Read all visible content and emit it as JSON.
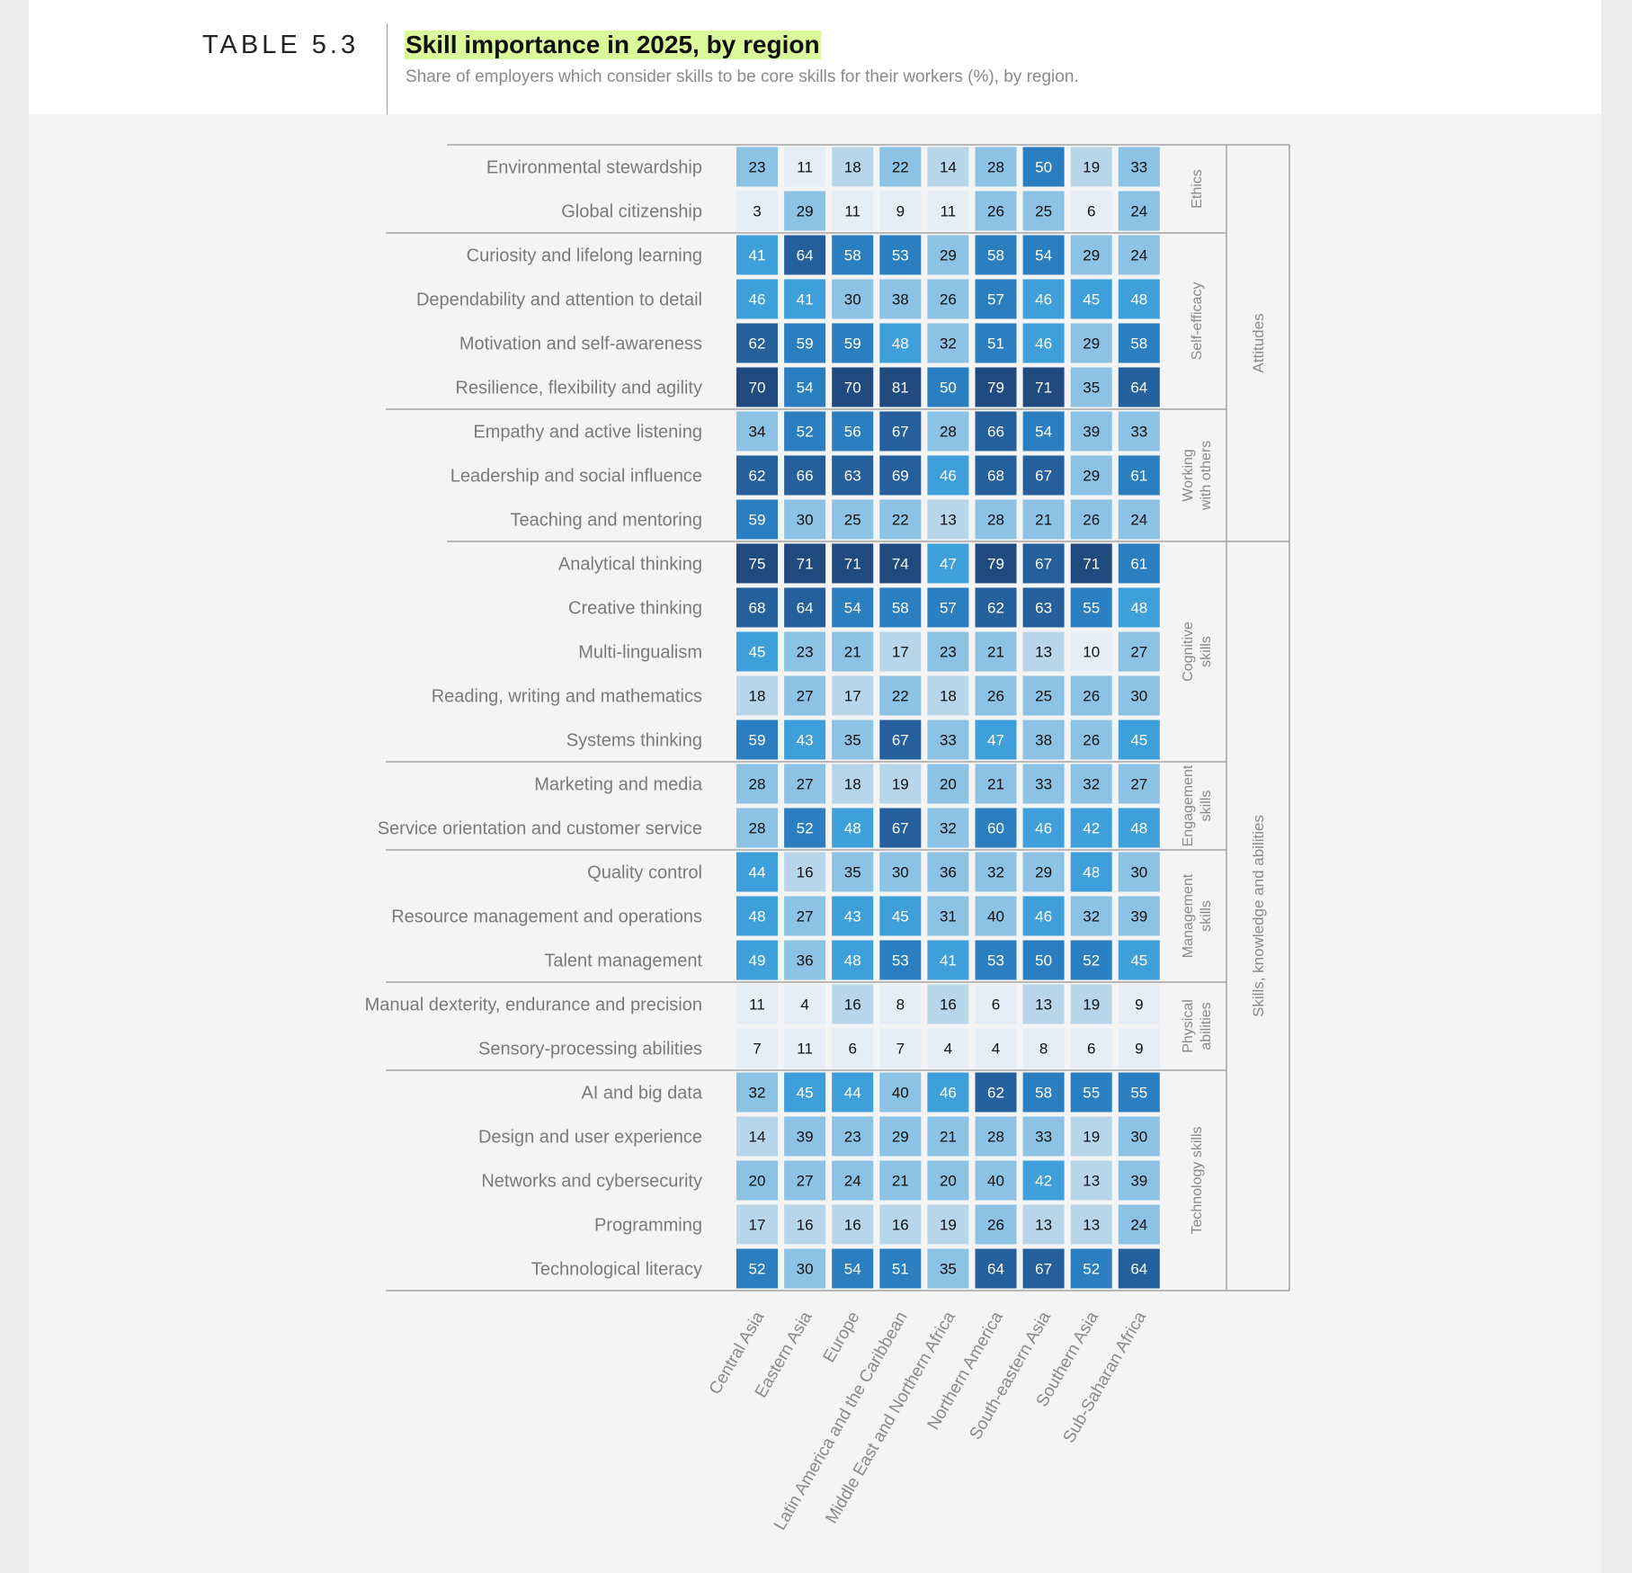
{
  "header": {
    "table_label": "TABLE 5.3",
    "title": "Skill importance in 2025, by region",
    "subtitle": "Share of employers which consider skills to be core skills for their workers (%), by region."
  },
  "chart_data": {
    "type": "heatmap",
    "title": "Skill importance in 2025, by region",
    "unit": "%",
    "regions": [
      "Central Asia",
      "Eastern Asia",
      "Europe",
      "Latin America and the Caribbean",
      "Middle East and Northern Africa",
      "Northern America",
      "South-eastern Asia",
      "Southern Asia",
      "Sub-Saharan Africa"
    ],
    "rows": [
      {
        "skill": "Environmental stewardship",
        "values": [
          23,
          11,
          18,
          22,
          14,
          28,
          50,
          19,
          33
        ]
      },
      {
        "skill": "Global citizenship",
        "values": [
          3,
          29,
          11,
          9,
          11,
          26,
          25,
          6,
          24
        ]
      },
      {
        "skill": "Curiosity and lifelong learning",
        "values": [
          41,
          64,
          58,
          53,
          29,
          58,
          54,
          29,
          24
        ]
      },
      {
        "skill": "Dependability and attention to detail",
        "values": [
          46,
          41,
          30,
          38,
          26,
          57,
          46,
          45,
          48
        ]
      },
      {
        "skill": "Motivation and self-awareness",
        "values": [
          62,
          59,
          59,
          48,
          32,
          51,
          46,
          29,
          58
        ]
      },
      {
        "skill": "Resilience, flexibility and agility",
        "values": [
          70,
          54,
          70,
          81,
          50,
          79,
          71,
          35,
          64
        ]
      },
      {
        "skill": "Empathy and active listening",
        "values": [
          34,
          52,
          56,
          67,
          28,
          66,
          54,
          39,
          33
        ]
      },
      {
        "skill": "Leadership and social influence",
        "values": [
          62,
          66,
          63,
          69,
          46,
          68,
          67,
          29,
          61
        ]
      },
      {
        "skill": "Teaching and mentoring",
        "values": [
          59,
          30,
          25,
          22,
          13,
          28,
          21,
          26,
          24
        ]
      },
      {
        "skill": "Analytical thinking",
        "values": [
          75,
          71,
          71,
          74,
          47,
          79,
          67,
          71,
          61
        ]
      },
      {
        "skill": "Creative thinking",
        "values": [
          68,
          64,
          54,
          58,
          57,
          62,
          63,
          55,
          48
        ]
      },
      {
        "skill": "Multi-lingualism",
        "values": [
          45,
          23,
          21,
          17,
          23,
          21,
          13,
          10,
          27
        ]
      },
      {
        "skill": "Reading, writing and mathematics",
        "values": [
          18,
          27,
          17,
          22,
          18,
          26,
          25,
          26,
          30
        ]
      },
      {
        "skill": "Systems thinking",
        "values": [
          59,
          43,
          35,
          67,
          33,
          47,
          38,
          26,
          45
        ]
      },
      {
        "skill": "Marketing and media",
        "values": [
          28,
          27,
          18,
          19,
          20,
          21,
          33,
          32,
          27
        ]
      },
      {
        "skill": "Service orientation and customer service",
        "values": [
          28,
          52,
          48,
          67,
          32,
          60,
          46,
          42,
          48
        ]
      },
      {
        "skill": "Quality control",
        "values": [
          44,
          16,
          35,
          30,
          36,
          32,
          29,
          48,
          30
        ]
      },
      {
        "skill": "Resource management and operations",
        "values": [
          48,
          27,
          43,
          45,
          31,
          40,
          46,
          32,
          39
        ]
      },
      {
        "skill": "Talent management",
        "values": [
          49,
          36,
          48,
          53,
          41,
          53,
          50,
          52,
          45
        ]
      },
      {
        "skill": "Manual dexterity, endurance and precision",
        "values": [
          11,
          4,
          16,
          8,
          16,
          6,
          13,
          19,
          9
        ]
      },
      {
        "skill": "Sensory-processing abilities",
        "values": [
          7,
          11,
          6,
          7,
          4,
          4,
          8,
          6,
          9
        ]
      },
      {
        "skill": "AI and big data",
        "values": [
          32,
          45,
          44,
          40,
          46,
          62,
          58,
          55,
          55
        ]
      },
      {
        "skill": "Design and user experience",
        "values": [
          14,
          39,
          23,
          29,
          21,
          28,
          33,
          19,
          30
        ]
      },
      {
        "skill": "Networks and cybersecurity",
        "values": [
          20,
          27,
          24,
          21,
          20,
          40,
          42,
          13,
          39
        ]
      },
      {
        "skill": "Programming",
        "values": [
          17,
          16,
          16,
          16,
          19,
          26,
          13,
          13,
          24
        ]
      },
      {
        "skill": "Technological literacy",
        "values": [
          52,
          30,
          54,
          51,
          35,
          64,
          67,
          52,
          64
        ]
      }
    ],
    "subgroups": [
      {
        "label": [
          "Ethics"
        ],
        "rows": [
          0,
          1
        ]
      },
      {
        "label": [
          "Self-efficacy"
        ],
        "rows": [
          2,
          5
        ]
      },
      {
        "label": [
          "Working",
          "with others"
        ],
        "rows": [
          6,
          8
        ]
      },
      {
        "label": [
          "Cognitive",
          "skills"
        ],
        "rows": [
          9,
          13
        ]
      },
      {
        "label": [
          "Engagement",
          "skills"
        ],
        "rows": [
          14,
          15
        ]
      },
      {
        "label": [
          "Management",
          "skills"
        ],
        "rows": [
          16,
          18
        ]
      },
      {
        "label": [
          "Physical",
          "abilities"
        ],
        "rows": [
          19,
          20
        ]
      },
      {
        "label": [
          "Technology skills"
        ],
        "rows": [
          21,
          25
        ]
      }
    ],
    "groups": [
      {
        "label": "Attitudes",
        "rows": [
          0,
          8
        ]
      },
      {
        "label": "Skills, knowledge and abilities",
        "rows": [
          9,
          25
        ]
      }
    ],
    "color_scale": [
      {
        "min": 0,
        "color": "#e6edf5",
        "text": "#111111"
      },
      {
        "min": 13,
        "color": "#b8d6ea",
        "text": "#111111"
      },
      {
        "min": 20,
        "color": "#8cc2e4",
        "text": "#111111"
      },
      {
        "min": 41,
        "color": "#3f9fdb",
        "text": "#ffffff"
      },
      {
        "min": 50,
        "color": "#2b7fc0",
        "text": "#ffffff"
      },
      {
        "min": 62,
        "color": "#255f9c",
        "text": "#ffffff"
      },
      {
        "min": 70,
        "color": "#214a7e",
        "text": "#ffffff"
      }
    ]
  }
}
